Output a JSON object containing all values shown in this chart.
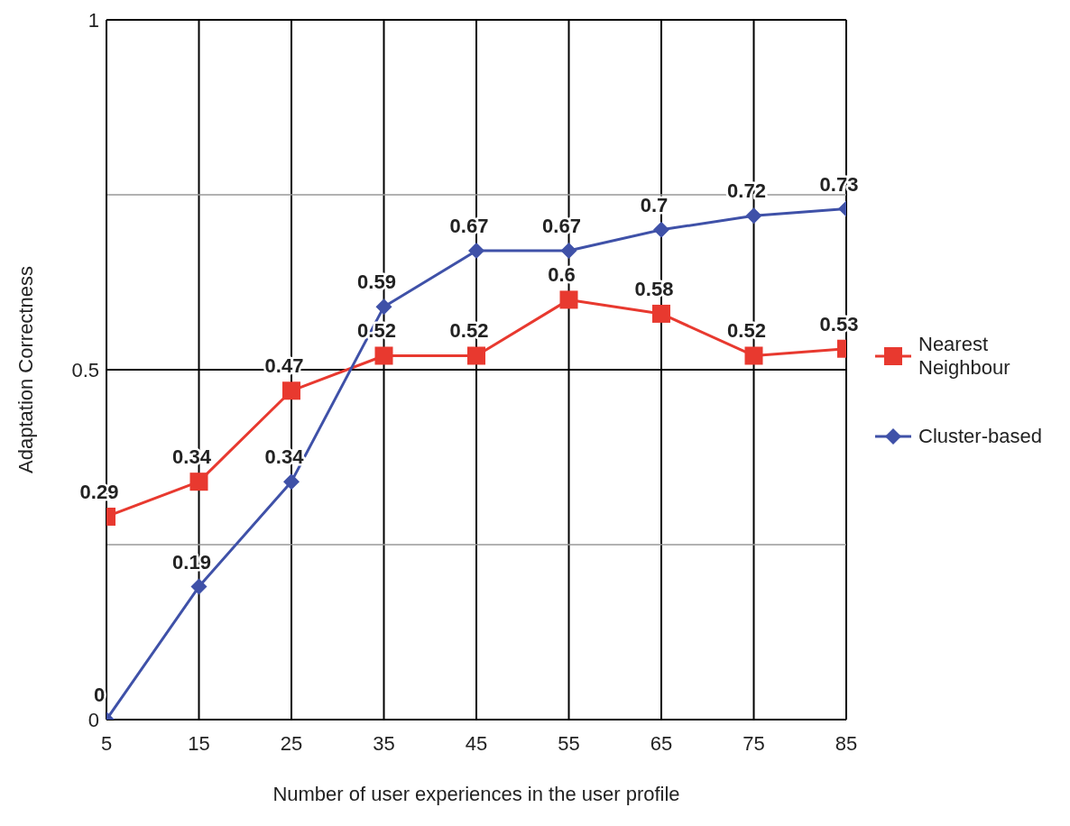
{
  "chart_data": {
    "type": "line",
    "xlabel": "Number of user experiences in the user profile",
    "ylabel": "Adaptation Correctness",
    "x": [
      5,
      15,
      25,
      35,
      45,
      55,
      65,
      75,
      85
    ],
    "series": [
      {
        "name": "Nearest Neighbour",
        "color": "#e8392f",
        "marker": "square",
        "values": [
          0.29,
          0.34,
          0.47,
          0.52,
          0.52,
          0.6,
          0.58,
          0.52,
          0.53
        ]
      },
      {
        "name": "Cluster-based",
        "color": "#3f51a8",
        "marker": "diamond",
        "values": [
          0,
          0.19,
          0.34,
          0.59,
          0.67,
          0.67,
          0.7,
          0.72,
          0.73
        ]
      }
    ],
    "xlim": [
      5,
      85
    ],
    "xticks": [
      5,
      15,
      25,
      35,
      45,
      55,
      65,
      75,
      85
    ],
    "ylim": [
      0,
      1
    ],
    "yticks": [
      0,
      {
        "value": 0.25,
        "label": null
      },
      0.5,
      {
        "value": 0.75,
        "label": null
      },
      1
    ],
    "grid": true,
    "legend": "right",
    "data_labels": true,
    "line_style": "solid"
  }
}
